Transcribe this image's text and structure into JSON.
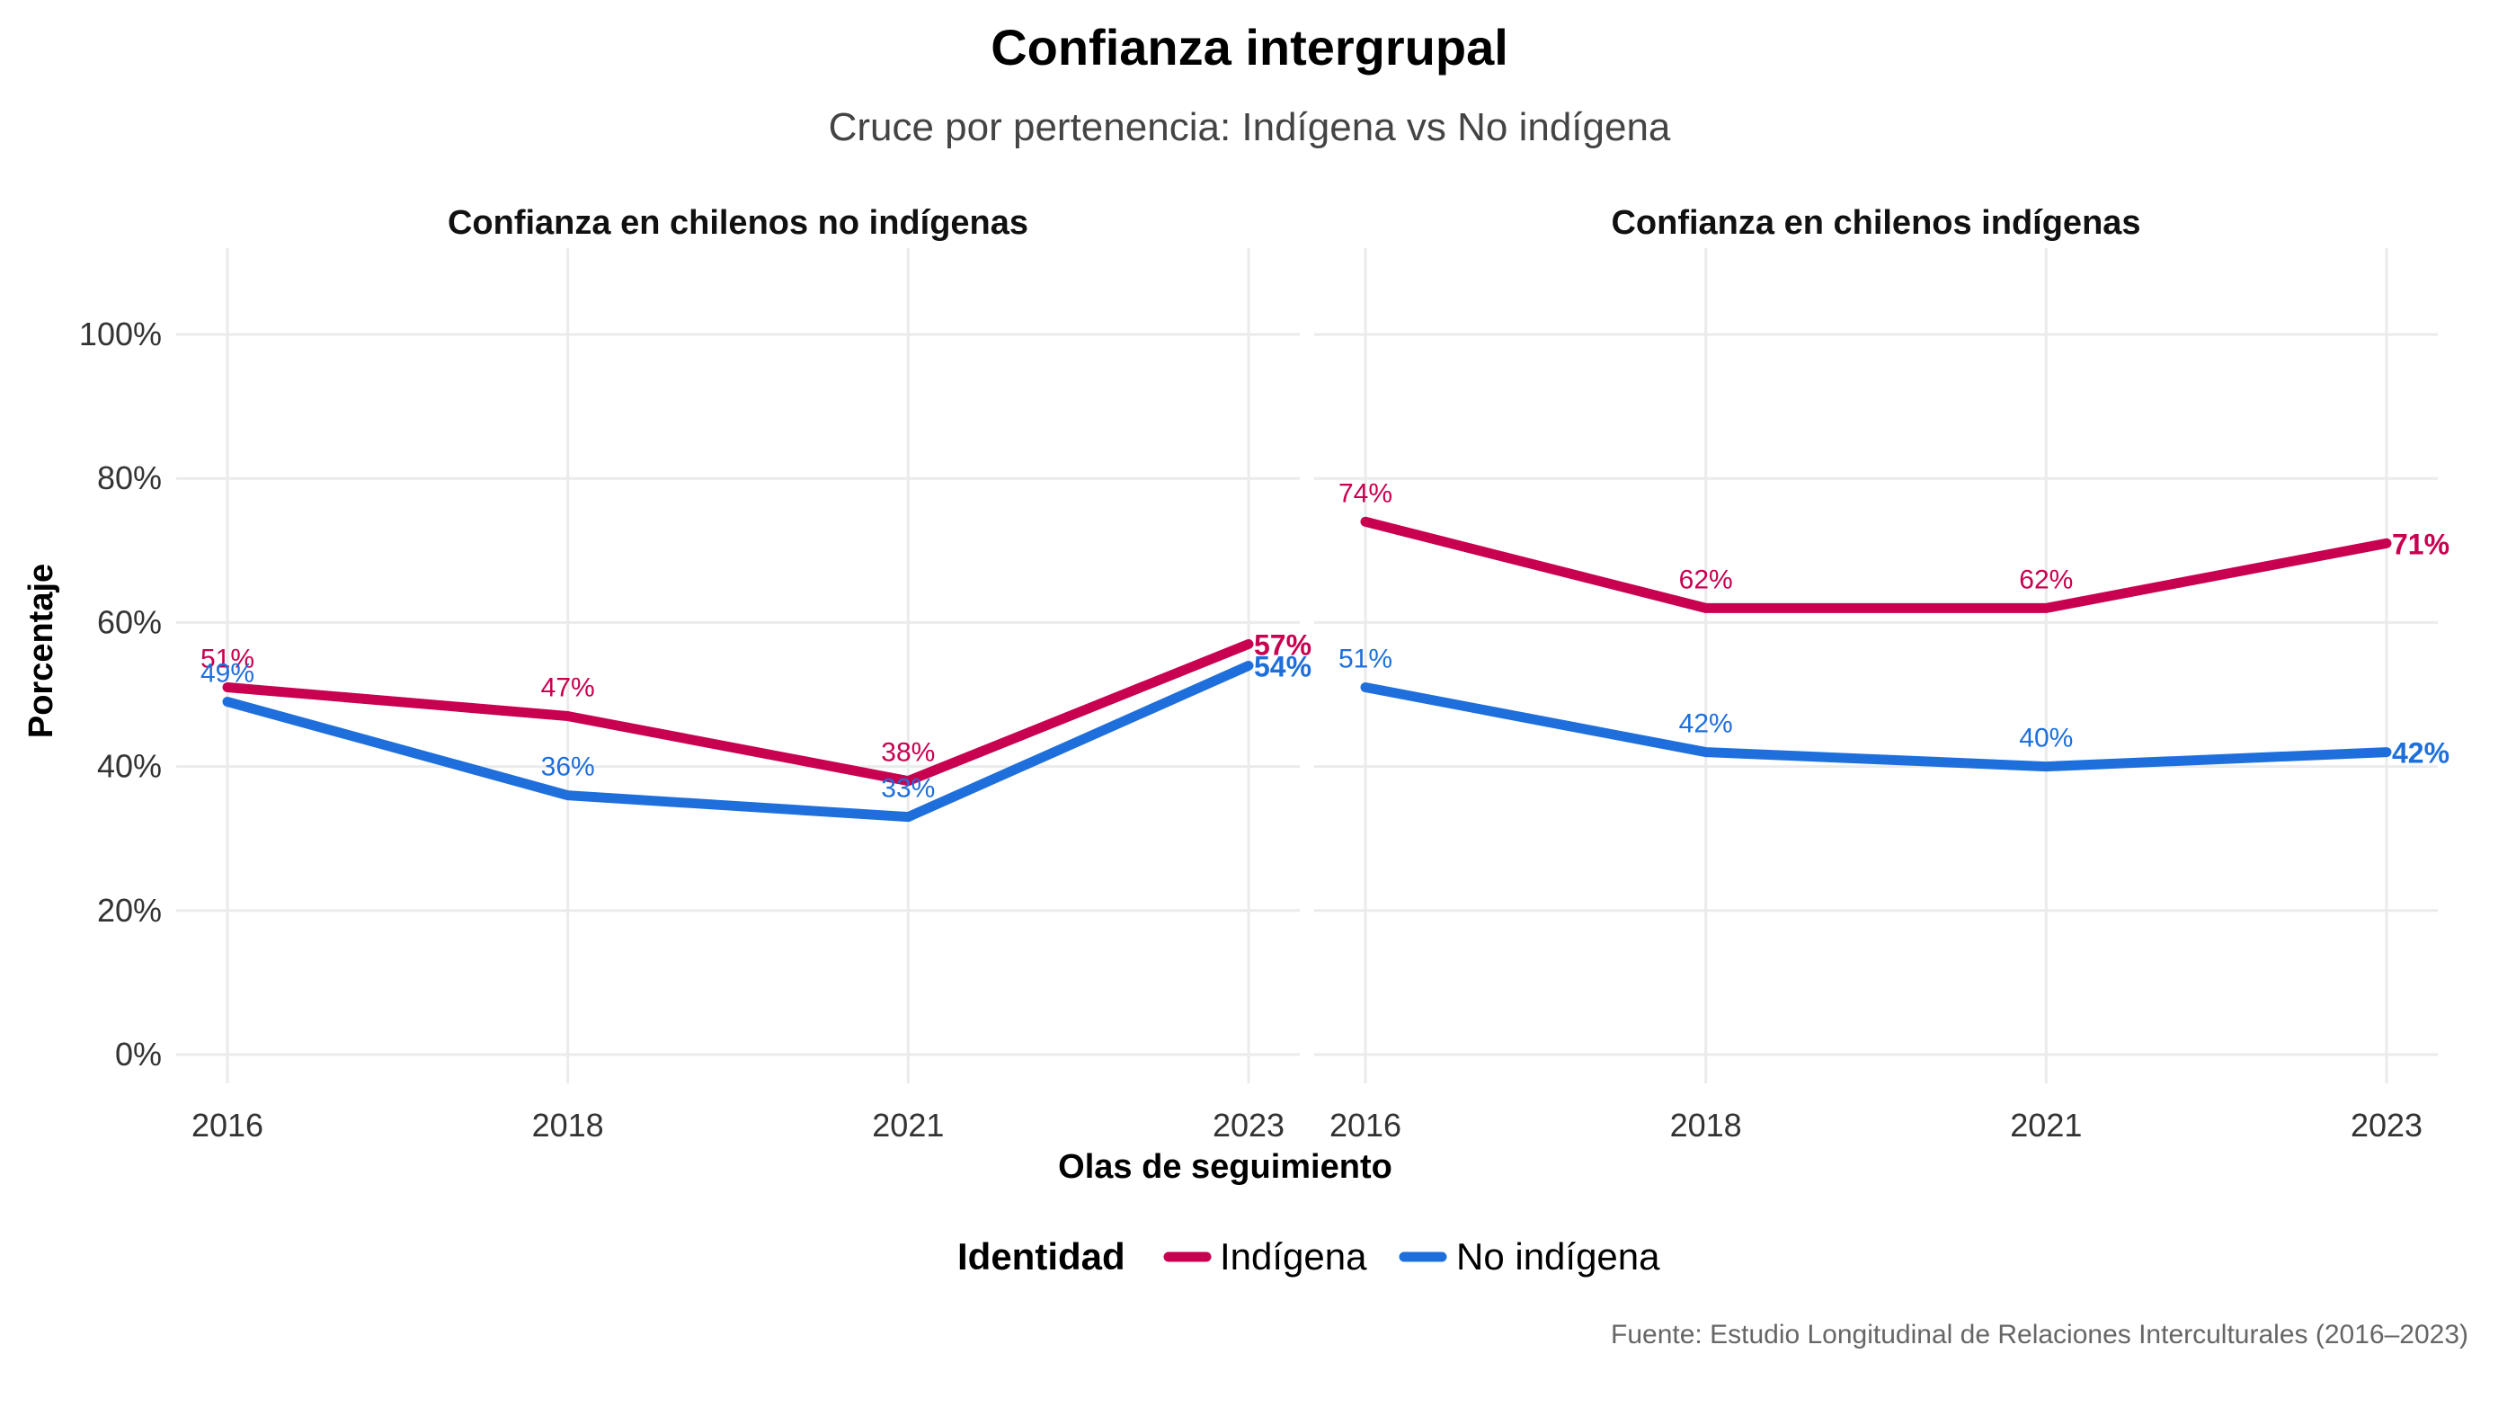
{
  "title": "Confianza intergrupal",
  "subtitle": "Cruce por pertenencia: Indígena vs No indígena",
  "caption": "Fuente: Estudio Longitudinal de Relaciones Interculturales (2016–2023)",
  "legend": {
    "title": "Identidad",
    "items": [
      {
        "label": "Indígena",
        "color": "#C8004F"
      },
      {
        "label": "No indígena",
        "color": "#1E6FDC"
      }
    ]
  },
  "chart_data": [
    {
      "type": "line",
      "title": "Confianza en chilenos no indígenas",
      "xlabel": "Olas de seguimiento",
      "ylabel": "Porcentaje",
      "categories": [
        "2016",
        "2018",
        "2021",
        "2023"
      ],
      "yticks": [
        "0%",
        "20%",
        "40%",
        "60%",
        "80%",
        "100%"
      ],
      "ylim": [
        0,
        110
      ],
      "grid": true,
      "legend_position": "bottom",
      "series": [
        {
          "name": "Indígena",
          "color": "#C8004F",
          "values": [
            51,
            47,
            38,
            57
          ],
          "labels": [
            "51%",
            "47%",
            "38%",
            "57%"
          ]
        },
        {
          "name": "No indígena",
          "color": "#1E6FDC",
          "values": [
            49,
            36,
            33,
            54
          ],
          "labels": [
            "49%",
            "36%",
            "33%",
            "54%"
          ]
        }
      ]
    },
    {
      "type": "line",
      "title": "Confianza en chilenos indígenas",
      "xlabel": "Olas de seguimiento",
      "ylabel": "Porcentaje",
      "categories": [
        "2016",
        "2018",
        "2021",
        "2023"
      ],
      "yticks": [
        "0%",
        "20%",
        "40%",
        "60%",
        "80%",
        "100%"
      ],
      "ylim": [
        0,
        110
      ],
      "grid": true,
      "legend_position": "bottom",
      "series": [
        {
          "name": "Indígena",
          "color": "#C8004F",
          "values": [
            74,
            62,
            62,
            71
          ],
          "labels": [
            "74%",
            "62%",
            "62%",
            "71%"
          ]
        },
        {
          "name": "No indígena",
          "color": "#1E6FDC",
          "values": [
            51,
            42,
            40,
            42
          ],
          "labels": [
            "51%",
            "42%",
            "40%",
            "42%"
          ]
        }
      ]
    }
  ]
}
